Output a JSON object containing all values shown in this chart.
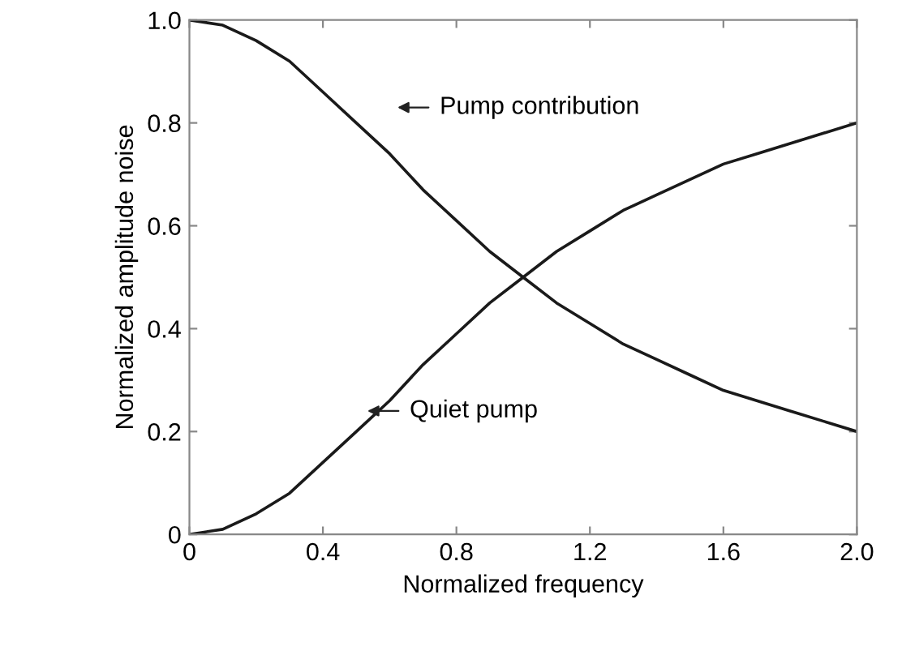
{
  "chart_data": {
    "type": "line",
    "xlabel": "Normalized frequency",
    "ylabel": "Normalized amplitude noise",
    "x": [
      0,
      0.1,
      0.2,
      0.3,
      0.4,
      0.5,
      0.6,
      0.7,
      0.8,
      0.9,
      1.0,
      1.1,
      1.2,
      1.3,
      1.4,
      1.5,
      1.6,
      1.7,
      1.8,
      1.9,
      2.0
    ],
    "series": [
      {
        "color": "#1a1a1a",
        "values": [
          1.0,
          0.99,
          0.96,
          0.92,
          0.86,
          0.8,
          0.74,
          0.67,
          0.61,
          0.55,
          0.5,
          0.45,
          0.41,
          0.37,
          0.34,
          0.31,
          0.28,
          0.26,
          0.24,
          0.22,
          0.2
        ]
      },
      {
        "color": "#1a1a1a",
        "values": [
          0.0,
          0.01,
          0.04,
          0.08,
          0.14,
          0.2,
          0.26,
          0.33,
          0.39,
          0.45,
          0.5,
          0.55,
          0.59,
          0.63,
          0.66,
          0.69,
          0.72,
          0.74,
          0.76,
          0.78,
          0.8
        ]
      }
    ],
    "annotations": [
      "Pump contribution",
      "Quiet pump"
    ],
    "xlim": [
      0,
      2.0
    ],
    "ylim": [
      0,
      1.0
    ],
    "xticks": [
      0,
      0.4,
      0.8,
      1.2,
      1.6,
      {
        "value": 2,
        "label": "2.0"
      }
    ],
    "yticks": [
      0,
      0.2,
      0.4,
      0.6,
      0.8,
      {
        "value": 1,
        "label": "1.0"
      }
    ],
    "grid": false,
    "legend": false,
    "marker": "none",
    "line_style": "solid"
  }
}
